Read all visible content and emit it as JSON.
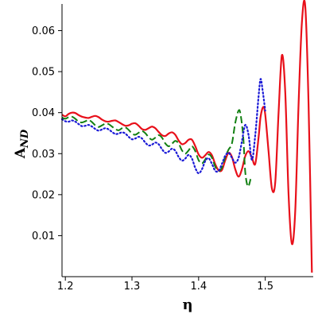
{
  "chart_data": {
    "type": "line",
    "xlabel": "η",
    "ylabel": "A",
    "ylabel_sub": "ND",
    "xlim": [
      1.195,
      1.572
    ],
    "ylim": [
      0.0,
      0.0665
    ],
    "x_ticks": [
      1.2,
      1.3,
      1.4,
      1.5
    ],
    "x_tick_labels": [
      "1.2",
      "1.3",
      "1.4",
      "1.5"
    ],
    "y_ticks": [
      0.01,
      0.02,
      0.03,
      0.04,
      0.05,
      0.06
    ],
    "y_tick_labels": [
      "0.01",
      "0.02",
      "0.03",
      "0.04",
      "0.05",
      "0.06"
    ],
    "grid": false,
    "legend": "none",
    "series": [
      {
        "style": "solid",
        "color": "#e8101a",
        "width": 2.2,
        "x": [
          1.195,
          1.2,
          1.205,
          1.21,
          1.215,
          1.22,
          1.225,
          1.23,
          1.235,
          1.24,
          1.245,
          1.25,
          1.255,
          1.26,
          1.265,
          1.27,
          1.275,
          1.28,
          1.285,
          1.29,
          1.295,
          1.3,
          1.305,
          1.31,
          1.315,
          1.32,
          1.325,
          1.33,
          1.335,
          1.34,
          1.345,
          1.35,
          1.355,
          1.36,
          1.365,
          1.37,
          1.375,
          1.38,
          1.385,
          1.39,
          1.395,
          1.4,
          1.405,
          1.41,
          1.415,
          1.42,
          1.425,
          1.43,
          1.435,
          1.44,
          1.445,
          1.45,
          1.455,
          1.46,
          1.465,
          1.47,
          1.475,
          1.48,
          1.485,
          1.49,
          1.493,
          1.497,
          1.5,
          1.505,
          1.51,
          1.515,
          1.52,
          1.525,
          1.53,
          1.535,
          1.54,
          1.545,
          1.55,
          1.555,
          1.56,
          1.565,
          1.57
        ],
        "y": [
          0.0395,
          0.0391,
          0.0397,
          0.04,
          0.0399,
          0.0394,
          0.039,
          0.0388,
          0.0387,
          0.039,
          0.0392,
          0.0389,
          0.0383,
          0.0379,
          0.0378,
          0.038,
          0.0381,
          0.0377,
          0.0372,
          0.0368,
          0.0369,
          0.0373,
          0.0374,
          0.0368,
          0.036,
          0.0358,
          0.0362,
          0.0366,
          0.0362,
          0.0353,
          0.0345,
          0.0343,
          0.0349,
          0.0352,
          0.0346,
          0.0332,
          0.0323,
          0.0326,
          0.0334,
          0.0334,
          0.0318,
          0.0298,
          0.029,
          0.0296,
          0.0304,
          0.0296,
          0.0274,
          0.0259,
          0.026,
          0.0284,
          0.0302,
          0.0292,
          0.0262,
          0.0244,
          0.0262,
          0.0294,
          0.0306,
          0.029,
          0.0275,
          0.034,
          0.039,
          0.0414,
          0.0395,
          0.0305,
          0.0215,
          0.023,
          0.04,
          0.054,
          0.045,
          0.02,
          0.008,
          0.016,
          0.042,
          0.062,
          0.066,
          0.042,
          0.001
        ]
      },
      {
        "style": "dashed",
        "color": "#128012",
        "width": 2.0,
        "x": [
          1.195,
          1.2,
          1.205,
          1.21,
          1.215,
          1.22,
          1.225,
          1.23,
          1.235,
          1.24,
          1.245,
          1.25,
          1.255,
          1.26,
          1.265,
          1.27,
          1.275,
          1.28,
          1.285,
          1.29,
          1.295,
          1.3,
          1.305,
          1.31,
          1.315,
          1.32,
          1.325,
          1.33,
          1.335,
          1.34,
          1.345,
          1.35,
          1.355,
          1.36,
          1.365,
          1.37,
          1.375,
          1.38,
          1.385,
          1.39,
          1.395,
          1.4,
          1.405,
          1.41,
          1.415,
          1.42,
          1.425,
          1.43,
          1.435,
          1.44,
          1.445,
          1.45,
          1.455,
          1.46,
          1.463,
          1.467,
          1.47,
          1.474,
          1.478
        ],
        "y": [
          0.0388,
          0.0385,
          0.0389,
          0.039,
          0.0385,
          0.0378,
          0.0376,
          0.0379,
          0.0382,
          0.0377,
          0.0369,
          0.0365,
          0.0369,
          0.0373,
          0.0372,
          0.0366,
          0.036,
          0.0357,
          0.0362,
          0.0364,
          0.0358,
          0.0349,
          0.0346,
          0.0351,
          0.0355,
          0.035,
          0.034,
          0.0334,
          0.0339,
          0.0345,
          0.0339,
          0.0325,
          0.0318,
          0.0324,
          0.0331,
          0.0325,
          0.0308,
          0.03,
          0.0308,
          0.0318,
          0.0306,
          0.0284,
          0.0276,
          0.0286,
          0.0298,
          0.029,
          0.0268,
          0.0258,
          0.0266,
          0.0292,
          0.031,
          0.0325,
          0.0375,
          0.0405,
          0.0395,
          0.034,
          0.0255,
          0.022,
          0.0238
        ]
      },
      {
        "style": "dotted",
        "color": "#1a1ad6",
        "width": 2.2,
        "x": [
          1.195,
          1.2,
          1.205,
          1.21,
          1.215,
          1.22,
          1.225,
          1.23,
          1.235,
          1.24,
          1.245,
          1.25,
          1.255,
          1.26,
          1.265,
          1.27,
          1.275,
          1.28,
          1.285,
          1.29,
          1.295,
          1.3,
          1.305,
          1.31,
          1.315,
          1.32,
          1.325,
          1.33,
          1.335,
          1.34,
          1.345,
          1.35,
          1.355,
          1.36,
          1.365,
          1.37,
          1.375,
          1.38,
          1.385,
          1.39,
          1.395,
          1.4,
          1.405,
          1.41,
          1.415,
          1.42,
          1.425,
          1.43,
          1.435,
          1.44,
          1.445,
          1.45,
          1.455,
          1.46,
          1.465,
          1.47,
          1.475,
          1.48,
          1.485,
          1.49,
          1.493,
          1.496,
          1.5
        ],
        "y": [
          0.0384,
          0.0379,
          0.0378,
          0.0381,
          0.0378,
          0.0372,
          0.0367,
          0.0368,
          0.037,
          0.0366,
          0.036,
          0.0356,
          0.0359,
          0.0362,
          0.0359,
          0.0353,
          0.0348,
          0.0349,
          0.0352,
          0.0349,
          0.0341,
          0.0335,
          0.0337,
          0.0341,
          0.0337,
          0.0327,
          0.032,
          0.0322,
          0.0327,
          0.0323,
          0.0311,
          0.0302,
          0.0305,
          0.0312,
          0.0307,
          0.0292,
          0.0283,
          0.0288,
          0.0297,
          0.0288,
          0.0265,
          0.0252,
          0.0262,
          0.0282,
          0.0289,
          0.0275,
          0.0258,
          0.0258,
          0.0275,
          0.0295,
          0.0302,
          0.029,
          0.0278,
          0.029,
          0.033,
          0.037,
          0.0345,
          0.0285,
          0.0345,
          0.044,
          0.0482,
          0.0455,
          0.0405
        ]
      }
    ]
  }
}
